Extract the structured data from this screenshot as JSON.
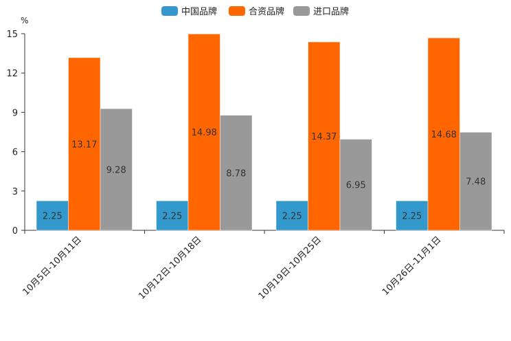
{
  "chart_data": {
    "type": "bar",
    "title": "",
    "unit": "%",
    "xlabel": "",
    "ylabel": "",
    "ylim": [
      0,
      15
    ],
    "yticks": [
      0,
      3,
      6,
      9,
      12,
      15
    ],
    "grid": false,
    "legend_position": "top-center",
    "categories": [
      "10月5日-10月11日",
      "10月12日-10月18日",
      "10月19日-10月25日",
      "10月26日-11月1日"
    ],
    "series": [
      {
        "name": "中国品牌",
        "color": "#3399cc",
        "values": [
          2.25,
          2.25,
          2.25,
          2.25
        ]
      },
      {
        "name": "合资品牌",
        "color": "#ff6600",
        "values": [
          13.17,
          14.98,
          14.37,
          14.68
        ]
      },
      {
        "name": "进口品牌",
        "color": "#999999",
        "values": [
          9.28,
          8.78,
          6.95,
          7.48
        ]
      }
    ]
  }
}
